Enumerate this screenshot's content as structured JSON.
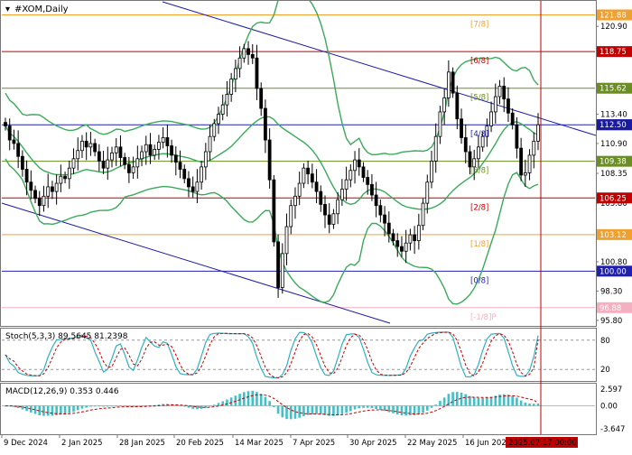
{
  "chart_data": {
    "type": "candlestick",
    "title": "#XOM,Daily",
    "x_ticks": [
      "9 Dec 2024",
      "2 Jan 2025",
      "28 Jan 2025",
      "20 Feb 2025",
      "14 Mar 2025",
      "7 Apr 2025",
      "30 Apr 2025",
      "22 May 2025",
      "16 Jun 2025"
    ],
    "cursor_date": "2025.07.17 00:00",
    "price_axis_ticks": [
      120.9,
      118.75,
      115.62,
      113.4,
      112.5,
      110.9,
      109.38,
      108.35,
      106.25,
      105.8,
      103.12,
      100.8,
      100.0,
      98.3,
      96.88,
      95.8
    ],
    "price_axis_plain_ticks": [
      "120.90",
      "113.40",
      "110.90",
      "108.35",
      "105.80",
      "100.80",
      "98.30",
      "95.80"
    ],
    "ylim": [
      95.4,
      123.0
    ],
    "current_price": "112.50",
    "murray_levels": [
      {
        "label": "[7/8]",
        "value": 121.88,
        "axis_text": "121.88",
        "color": "#f0a030"
      },
      {
        "label": "[6/8]",
        "value": 118.75,
        "axis_text": "118.75",
        "color": "#c00000"
      },
      {
        "label": "[5/8]",
        "value": 115.62,
        "axis_text": "115.62",
        "color": "#6b8e23"
      },
      {
        "label": "[4/8]",
        "value": 112.5,
        "axis_text": "112.50",
        "color": "#2020b0"
      },
      {
        "label": "[3/8]",
        "value": 109.38,
        "axis_text": "109.38",
        "color": "#6b8e23"
      },
      {
        "label": "[2/8]",
        "value": 106.25,
        "axis_text": "106.25",
        "color": "#c00000"
      },
      {
        "label": "[1/8]",
        "value": 103.12,
        "axis_text": "103.12",
        "color": "#f0a030"
      },
      {
        "label": "[0/8]",
        "value": 100.0,
        "axis_text": "100.00",
        "color": "#2020b0"
      },
      {
        "label": "[-1/8]P",
        "value": 96.88,
        "axis_text": "96.88",
        "color": "#f4b0c0"
      }
    ],
    "candles_close": [
      112.4,
      111.2,
      110.9,
      109.8,
      108.7,
      107.6,
      106.9,
      106.2,
      105.6,
      106.4,
      107.2,
      106.8,
      107.5,
      108.1,
      107.9,
      108.8,
      109.6,
      110.3,
      111.1,
      110.6,
      110.9,
      110.2,
      109.4,
      108.8,
      109.5,
      110.1,
      110.6,
      109.7,
      109.1,
      108.4,
      108.9,
      109.6,
      110.2,
      110.8,
      109.9,
      110.4,
      111.0,
      111.4,
      110.7,
      109.9,
      109.3,
      108.7,
      107.9,
      107.2,
      106.8,
      107.6,
      108.9,
      110.2,
      111.5,
      112.6,
      113.4,
      114.2,
      115.1,
      116.4,
      117.3,
      118.2,
      119.0,
      118.5,
      118.2,
      115.6,
      113.9,
      111.2,
      107.8,
      102.5,
      98.6,
      101.5,
      103.8,
      105.6,
      106.4,
      107.5,
      108.8,
      108.3,
      107.6,
      106.8,
      105.7,
      104.8,
      104.0,
      104.9,
      106.1,
      107.0,
      107.8,
      108.6,
      109.5,
      108.9,
      108.0,
      107.4,
      106.5,
      105.6,
      104.8,
      104.1,
      103.2,
      102.6,
      102.1,
      101.7,
      102.4,
      103.1,
      102.6,
      103.9,
      105.8,
      107.6,
      109.4,
      111.5,
      113.6,
      114.8,
      117.0,
      115.2,
      113.0,
      111.4,
      110.2,
      108.9,
      109.6,
      110.6,
      111.5,
      112.4,
      113.6,
      114.9,
      115.8,
      114.7,
      113.5,
      112.5,
      110.5,
      108.2,
      108.4,
      109.9,
      111.1,
      112.5
    ],
    "upper_band_text": "",
    "stochastic": {
      "label": "Stoch(5,3,3) 89.5645 81.2398",
      "k_value": 89.5645,
      "d_value": 81.2398,
      "ylim": [
        0,
        100
      ],
      "levels": [
        20,
        80
      ],
      "axis_ticks": [
        "80",
        "20"
      ]
    },
    "macd": {
      "label": "MACD(12,26,9) 0.353 0.446",
      "macd_value": 0.353,
      "signal_value": 0.446,
      "ylim": [
        -4.2,
        3.2
      ],
      "axis_ticks": [
        "2.597",
        "0.00",
        "-3.647"
      ]
    },
    "colors": {
      "candle": "#000000",
      "bands": "#3aaa5a",
      "channel": "#1a1aa0",
      "cursor": "#c00000",
      "stoch_k": "#30b0c0",
      "stoch_d": "#c00000",
      "macd_hist": "#40c0c8",
      "macd_signal": "#c00000",
      "price_box": "#1a1aa0",
      "cursor_box": "#c00000"
    },
    "xlabel": "",
    "ylabel": ""
  }
}
